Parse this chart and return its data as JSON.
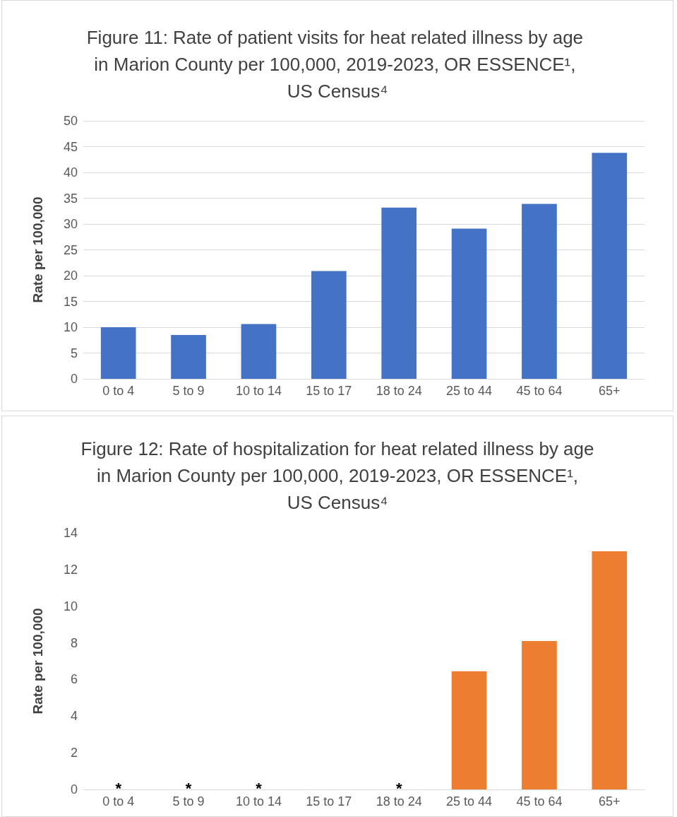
{
  "chart_data": [
    {
      "type": "bar",
      "title": "Figure 11: Rate of patient visits for heat related illness by age in Marion County per 100,000, 2019-2023, OR ESSENCE¹, US Census⁴",
      "ylabel": "Rate per 100,000",
      "categories": [
        "0 to 4",
        "5 to 9",
        "10 to 14",
        "15 to 17",
        "18 to 24",
        "25 to 44",
        "45 to 64",
        "65+"
      ],
      "values": [
        10.0,
        8.5,
        10.6,
        20.9,
        33.2,
        29.1,
        33.9,
        43.8
      ],
      "color": "#4472c4",
      "ylim": [
        0,
        50
      ],
      "yticks": [
        0,
        5,
        10,
        15,
        20,
        25,
        30,
        35,
        40,
        45,
        50
      ],
      "grid": "y"
    },
    {
      "type": "bar",
      "title": "Figure 12: Rate of hospitalization for heat related illness by age in Marion County per 100,000, 2019-2023, OR ESSENCE¹, US Census⁴",
      "ylabel": "Rate per 100,000",
      "categories": [
        "0 to 4",
        "5 to 9",
        "10 to 14",
        "15 to 17",
        "18 to 24",
        "25 to 44",
        "45 to 64",
        "65+"
      ],
      "values": [
        null,
        null,
        null,
        null,
        null,
        6.45,
        8.1,
        13.0
      ],
      "color": "#ed7d31",
      "ylim": [
        0,
        14
      ],
      "yticks": [
        0,
        2,
        4,
        6,
        8,
        10,
        12,
        14
      ],
      "grid": false,
      "value_labels": [
        "*",
        "*",
        "*",
        null,
        "*",
        null,
        null,
        null
      ]
    }
  ]
}
